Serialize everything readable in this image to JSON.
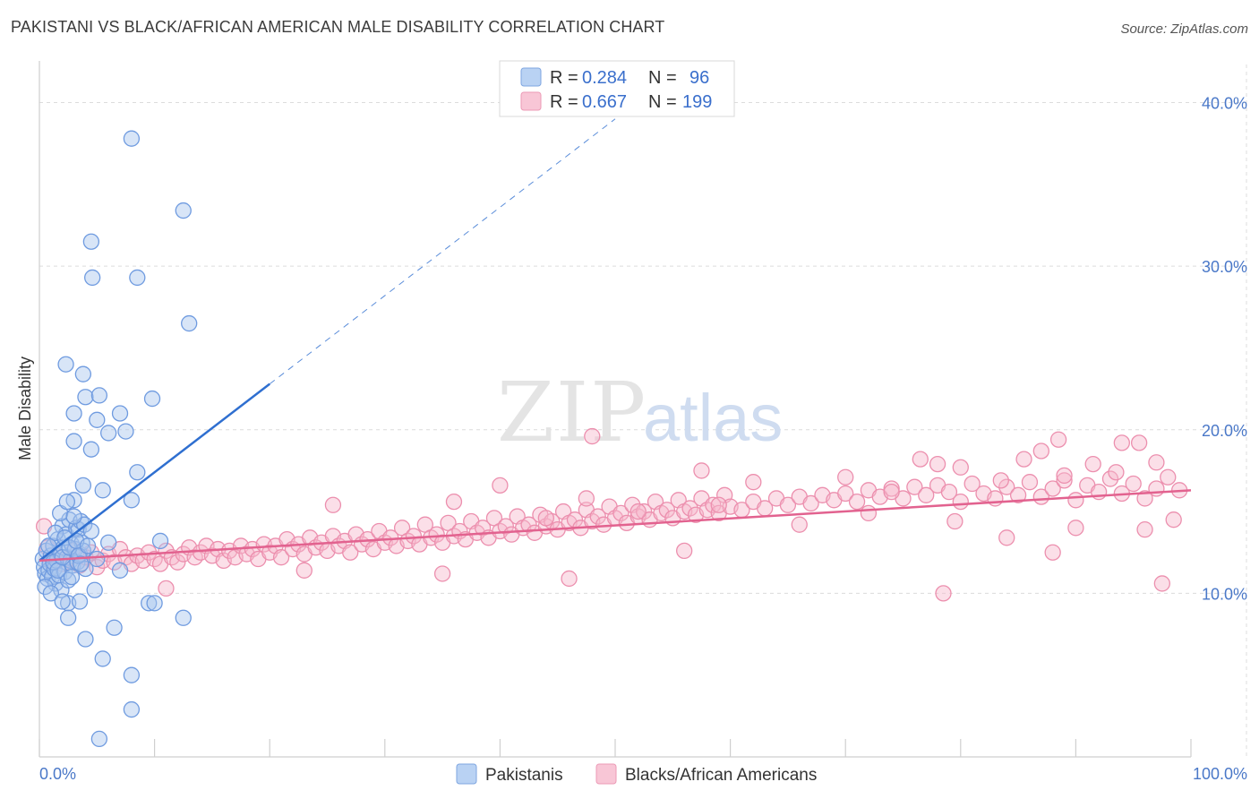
{
  "title": "PAKISTANI VS BLACK/AFRICAN AMERICAN MALE DISABILITY CORRELATION CHART",
  "source": "Source: ZipAtlas.com",
  "watermark": {
    "zip": "ZIP",
    "atlas": "atlas"
  },
  "colors": {
    "blue_fill": "#a9c6ee",
    "blue_stroke": "#6f9be0",
    "blue_line": "#2f6fd0",
    "pink_fill": "#f6b8cc",
    "pink_stroke": "#ec8fae",
    "pink_line": "#e2628f",
    "grid": "#dcdcdc",
    "tick_text": "#4a78c8"
  },
  "legend": {
    "rows": [
      {
        "r_label": "R =",
        "r_value": "0.284",
        "n_label": "N =",
        "n_value": "96"
      },
      {
        "r_label": "R =",
        "r_value": "0.667",
        "n_label": "N =",
        "n_value": "199"
      }
    ]
  },
  "chart_data": {
    "type": "scatter",
    "xlabel": "",
    "ylabel": "Male Disability",
    "xlim": [
      0,
      100
    ],
    "ylim": [
      0,
      42
    ],
    "x_tick_labels": [
      "0.0%",
      "100.0%"
    ],
    "y_ticks": [
      10,
      20,
      30,
      40
    ],
    "y_tick_labels": [
      "10.0%",
      "20.0%",
      "30.0%",
      "40.0%"
    ],
    "grid": true,
    "series": [
      {
        "name": "Pakistanis",
        "r": 0.284,
        "n": 96,
        "trend": {
          "x0": 0,
          "y0": 12.0,
          "x1": 20,
          "y1": 22.8,
          "dash_to_x": 50,
          "dash_to_y": 39.0
        },
        "points": [
          [
            0.3,
            12.1
          ],
          [
            0.4,
            11.6
          ],
          [
            0.5,
            11.2
          ],
          [
            0.6,
            12.6
          ],
          [
            0.7,
            10.9
          ],
          [
            0.8,
            11.4
          ],
          [
            0.9,
            11.8
          ],
          [
            1.0,
            12.3
          ],
          [
            1.1,
            11.0
          ],
          [
            1.2,
            12.9
          ],
          [
            1.3,
            11.5
          ],
          [
            1.4,
            10.6
          ],
          [
            1.5,
            12.0
          ],
          [
            1.6,
            13.3
          ],
          [
            1.7,
            11.1
          ],
          [
            1.8,
            12.5
          ],
          [
            1.9,
            10.2
          ],
          [
            2.0,
            14.1
          ],
          [
            2.1,
            12.8
          ],
          [
            2.2,
            11.3
          ],
          [
            2.3,
            13.6
          ],
          [
            2.4,
            12.2
          ],
          [
            2.5,
            10.8
          ],
          [
            2.6,
            14.5
          ],
          [
            2.7,
            12.0
          ],
          [
            2.8,
            13.0
          ],
          [
            2.9,
            11.7
          ],
          [
            3.0,
            15.7
          ],
          [
            3.1,
            12.7
          ],
          [
            3.2,
            14.0
          ],
          [
            3.3,
            11.9
          ],
          [
            3.4,
            13.9
          ],
          [
            3.5,
            12.4
          ],
          [
            3.6,
            14.4
          ],
          [
            3.7,
            13.1
          ],
          [
            3.8,
            12.6
          ],
          [
            3.9,
            14.2
          ],
          [
            4.0,
            11.5
          ],
          [
            0.5,
            10.4
          ],
          [
            0.8,
            12.9
          ],
          [
            1.0,
            10.0
          ],
          [
            1.2,
            11.9
          ],
          [
            1.4,
            13.7
          ],
          [
            1.6,
            11.4
          ],
          [
            1.8,
            14.9
          ],
          [
            2.0,
            12.2
          ],
          [
            2.2,
            13.4
          ],
          [
            2.4,
            15.6
          ],
          [
            2.6,
            12.8
          ],
          [
            2.8,
            11.0
          ],
          [
            3.0,
            14.7
          ],
          [
            3.2,
            13.2
          ],
          [
            3.4,
            12.3
          ],
          [
            3.6,
            11.8
          ],
          [
            3.8,
            16.6
          ],
          [
            4.2,
            12.9
          ],
          [
            4.5,
            13.8
          ],
          [
            5.0,
            12.1
          ],
          [
            5.5,
            16.3
          ],
          [
            6.0,
            13.1
          ],
          [
            7.0,
            11.4
          ],
          [
            8.0,
            15.7
          ],
          [
            4.8,
            10.2
          ],
          [
            2.5,
            9.4
          ],
          [
            2.3,
            24.0
          ],
          [
            3.8,
            23.4
          ],
          [
            4.0,
            22.0
          ],
          [
            5.2,
            22.1
          ],
          [
            3.0,
            21.0
          ],
          [
            5.0,
            20.6
          ],
          [
            7.0,
            21.0
          ],
          [
            3.0,
            19.3
          ],
          [
            6.0,
            19.8
          ],
          [
            4.5,
            18.8
          ],
          [
            7.5,
            19.9
          ],
          [
            8.5,
            17.4
          ],
          [
            9.8,
            21.9
          ],
          [
            3.5,
            9.5
          ],
          [
            2.0,
            9.5
          ],
          [
            4.0,
            7.2
          ],
          [
            6.5,
            7.9
          ],
          [
            9.5,
            9.4
          ],
          [
            10.0,
            9.4
          ],
          [
            2.5,
            8.5
          ],
          [
            5.5,
            6.0
          ],
          [
            10.5,
            13.2
          ],
          [
            8.0,
            5.0
          ],
          [
            12.5,
            8.5
          ],
          [
            8.0,
            2.9
          ],
          [
            5.2,
            1.1
          ],
          [
            8.0,
            37.8
          ],
          [
            12.5,
            33.4
          ],
          [
            4.5,
            31.5
          ],
          [
            4.6,
            29.3
          ],
          [
            8.5,
            29.3
          ],
          [
            13.0,
            26.5
          ]
        ]
      },
      {
        "name": "Blacks/African Americans",
        "r": 0.667,
        "n": 199,
        "trend": {
          "x0": 0,
          "y0": 12.0,
          "x1": 100,
          "y1": 16.3
        },
        "points": [
          [
            0.4,
            14.1
          ],
          [
            0.7,
            12.8
          ],
          [
            1.0,
            11.9
          ],
          [
            1.5,
            12.3
          ],
          [
            2.0,
            11.8
          ],
          [
            2.5,
            12.1
          ],
          [
            3.0,
            12.6
          ],
          [
            3.5,
            11.7
          ],
          [
            4.0,
            12.2
          ],
          [
            4.5,
            12.5
          ],
          [
            5.0,
            11.6
          ],
          [
            5.5,
            12.0
          ],
          [
            6.0,
            12.4
          ],
          [
            6.5,
            11.9
          ],
          [
            7.0,
            12.7
          ],
          [
            7.5,
            12.2
          ],
          [
            8.0,
            11.8
          ],
          [
            8.5,
            12.3
          ],
          [
            9.0,
            12.0
          ],
          [
            9.5,
            12.5
          ],
          [
            10.0,
            12.1
          ],
          [
            10.5,
            11.8
          ],
          [
            11.0,
            12.6
          ],
          [
            11.5,
            12.2
          ],
          [
            12.0,
            11.9
          ],
          [
            12.5,
            12.4
          ],
          [
            13.0,
            12.8
          ],
          [
            13.5,
            12.2
          ],
          [
            14.0,
            12.5
          ],
          [
            14.5,
            12.9
          ],
          [
            15.0,
            12.3
          ],
          [
            15.5,
            12.7
          ],
          [
            16.0,
            12.0
          ],
          [
            16.5,
            12.6
          ],
          [
            17.0,
            12.2
          ],
          [
            17.5,
            12.9
          ],
          [
            18.0,
            12.4
          ],
          [
            18.5,
            12.7
          ],
          [
            19.0,
            12.1
          ],
          [
            19.5,
            13.0
          ],
          [
            20.0,
            12.5
          ],
          [
            20.5,
            12.9
          ],
          [
            21.0,
            12.2
          ],
          [
            21.5,
            13.3
          ],
          [
            22.0,
            12.7
          ],
          [
            22.5,
            13.0
          ],
          [
            23.0,
            12.4
          ],
          [
            23.5,
            13.4
          ],
          [
            24.0,
            12.8
          ],
          [
            24.5,
            13.1
          ],
          [
            25.0,
            12.6
          ],
          [
            25.5,
            13.5
          ],
          [
            26.0,
            12.9
          ],
          [
            26.5,
            13.2
          ],
          [
            27.0,
            12.5
          ],
          [
            27.5,
            13.6
          ],
          [
            28.0,
            13.0
          ],
          [
            28.5,
            13.3
          ],
          [
            29.0,
            12.7
          ],
          [
            29.5,
            13.8
          ],
          [
            30.0,
            13.1
          ],
          [
            30.5,
            13.4
          ],
          [
            31.0,
            12.9
          ],
          [
            31.5,
            14.0
          ],
          [
            32.0,
            13.2
          ],
          [
            32.5,
            13.5
          ],
          [
            33.0,
            13.0
          ],
          [
            33.5,
            14.2
          ],
          [
            34.0,
            13.4
          ],
          [
            34.5,
            13.6
          ],
          [
            35.0,
            13.1
          ],
          [
            35.5,
            14.3
          ],
          [
            36.0,
            13.5
          ],
          [
            36.5,
            13.8
          ],
          [
            37.0,
            13.3
          ],
          [
            37.5,
            14.4
          ],
          [
            38.0,
            13.7
          ],
          [
            38.5,
            14.0
          ],
          [
            39.0,
            13.4
          ],
          [
            39.5,
            14.6
          ],
          [
            40.0,
            13.8
          ],
          [
            40.5,
            14.1
          ],
          [
            41.0,
            13.6
          ],
          [
            41.5,
            14.7
          ],
          [
            42.0,
            14.0
          ],
          [
            42.5,
            14.2
          ],
          [
            43.0,
            13.7
          ],
          [
            43.5,
            14.8
          ],
          [
            44.0,
            14.1
          ],
          [
            44.5,
            14.4
          ],
          [
            45.0,
            13.9
          ],
          [
            45.5,
            15.0
          ],
          [
            46.0,
            14.3
          ],
          [
            46.5,
            14.5
          ],
          [
            47.0,
            14.0
          ],
          [
            47.5,
            15.1
          ],
          [
            48.0,
            14.4
          ],
          [
            48.5,
            14.7
          ],
          [
            49.0,
            14.2
          ],
          [
            49.5,
            15.3
          ],
          [
            50.0,
            14.6
          ],
          [
            50.5,
            14.9
          ],
          [
            51.0,
            14.3
          ],
          [
            51.5,
            15.4
          ],
          [
            52.0,
            14.7
          ],
          [
            52.5,
            15.0
          ],
          [
            53.0,
            14.5
          ],
          [
            53.5,
            15.6
          ],
          [
            54.0,
            14.9
          ],
          [
            54.5,
            15.1
          ],
          [
            55.0,
            14.6
          ],
          [
            55.5,
            15.7
          ],
          [
            56.0,
            15.0
          ],
          [
            56.5,
            15.2
          ],
          [
            57.0,
            14.8
          ],
          [
            57.5,
            15.8
          ],
          [
            58.0,
            15.1
          ],
          [
            58.5,
            15.4
          ],
          [
            59.0,
            14.9
          ],
          [
            59.5,
            16.0
          ],
          [
            60.0,
            15.3
          ],
          [
            61.0,
            15.1
          ],
          [
            62.0,
            15.6
          ],
          [
            63.0,
            15.2
          ],
          [
            64.0,
            15.8
          ],
          [
            65.0,
            15.4
          ],
          [
            66.0,
            15.9
          ],
          [
            67.0,
            15.5
          ],
          [
            68.0,
            16.0
          ],
          [
            69.0,
            15.7
          ],
          [
            70.0,
            16.1
          ],
          [
            71.0,
            15.6
          ],
          [
            72.0,
            16.3
          ],
          [
            73.0,
            15.9
          ],
          [
            74.0,
            16.4
          ],
          [
            75.0,
            15.8
          ],
          [
            76.0,
            16.5
          ],
          [
            77.0,
            16.0
          ],
          [
            78.0,
            16.6
          ],
          [
            79.0,
            16.2
          ],
          [
            80.0,
            15.6
          ],
          [
            81.0,
            16.7
          ],
          [
            82.0,
            16.1
          ],
          [
            83.0,
            15.8
          ],
          [
            84.0,
            16.5
          ],
          [
            85.0,
            16.0
          ],
          [
            86.0,
            16.8
          ],
          [
            87.0,
            15.9
          ],
          [
            88.0,
            16.4
          ],
          [
            89.0,
            16.9
          ],
          [
            90.0,
            15.7
          ],
          [
            91.0,
            16.6
          ],
          [
            92.0,
            16.2
          ],
          [
            93.0,
            17.0
          ],
          [
            94.0,
            16.1
          ],
          [
            95.0,
            16.7
          ],
          [
            96.0,
            15.8
          ],
          [
            97.0,
            16.4
          ],
          [
            98.0,
            17.1
          ],
          [
            99.0,
            16.3
          ],
          [
            40.0,
            16.6
          ],
          [
            47.5,
            15.8
          ],
          [
            57.5,
            17.5
          ],
          [
            62.0,
            16.8
          ],
          [
            70.0,
            17.1
          ],
          [
            74.0,
            16.2
          ],
          [
            76.5,
            18.2
          ],
          [
            80.0,
            17.7
          ],
          [
            83.5,
            16.9
          ],
          [
            85.5,
            18.2
          ],
          [
            87.0,
            18.7
          ],
          [
            89.0,
            17.2
          ],
          [
            91.5,
            17.9
          ],
          [
            93.5,
            17.4
          ],
          [
            95.5,
            19.2
          ],
          [
            97.0,
            18.0
          ],
          [
            88.5,
            19.4
          ],
          [
            94.0,
            19.2
          ],
          [
            78.0,
            17.9
          ],
          [
            48.0,
            19.6
          ],
          [
            25.5,
            15.4
          ],
          [
            36.0,
            15.6
          ],
          [
            44.0,
            14.6
          ],
          [
            52.0,
            15.0
          ],
          [
            59.0,
            15.4
          ],
          [
            66.0,
            14.2
          ],
          [
            72.0,
            14.9
          ],
          [
            79.5,
            14.4
          ],
          [
            84.0,
            13.4
          ],
          [
            90.0,
            14.0
          ],
          [
            96.0,
            13.9
          ],
          [
            98.5,
            14.5
          ],
          [
            11.0,
            10.3
          ],
          [
            23.0,
            11.4
          ],
          [
            35.0,
            11.2
          ],
          [
            46.0,
            10.9
          ],
          [
            56.0,
            12.6
          ],
          [
            78.5,
            10.0
          ],
          [
            97.5,
            10.6
          ],
          [
            88.0,
            12.5
          ]
        ]
      }
    ]
  }
}
